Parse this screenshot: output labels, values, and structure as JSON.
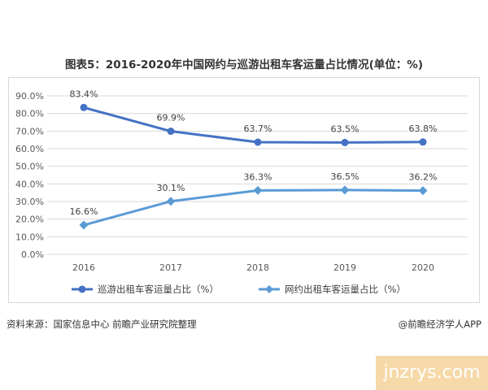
{
  "title": "图表5：2016-2020年中国网约与巡游出租车客运量占比情况(单位：%)",
  "footer": {
    "source": "资料来源：国家信息中心 前瞻产业研究院整理",
    "credit": "@前瞻经济学人APP"
  },
  "watermark": {
    "site": "jnzrys.com"
  },
  "chart_data": {
    "type": "line",
    "x": [
      "2016",
      "2017",
      "2018",
      "2019",
      "2020"
    ],
    "ylim": [
      0,
      90
    ],
    "yticks": [
      0,
      10,
      20,
      30,
      40,
      50,
      60,
      70,
      80,
      90
    ],
    "ytick_labels": [
      "0.0%",
      "10.0%",
      "20.0%",
      "30.0%",
      "40.0%",
      "50.0%",
      "60.0%",
      "70.0%",
      "80.0%",
      "90.0%"
    ],
    "grid": true,
    "legend_position": "bottom",
    "series": [
      {
        "name": "巡游出租车客运量占比（%）",
        "values": [
          83.4,
          69.9,
          63.7,
          63.5,
          63.8
        ],
        "labels": [
          "83.4%",
          "69.9%",
          "63.7%",
          "63.5%",
          "63.8%"
        ],
        "marker": "circle",
        "color": "#4472c4"
      },
      {
        "name": "网约出租车客运量占比（%）",
        "values": [
          16.6,
          30.1,
          36.3,
          36.5,
          36.2
        ],
        "labels": [
          "16.6%",
          "30.1%",
          "36.3%",
          "36.5%",
          "36.2%"
        ],
        "marker": "diamond",
        "color": "#5b9bd5"
      }
    ]
  }
}
